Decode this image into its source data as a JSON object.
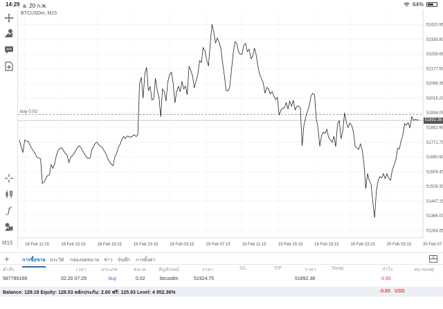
{
  "status": {
    "time": "14:29",
    "date": "อ. 20 ก.พ.",
    "battery": "64%"
  },
  "chart_header": {
    "symbol": "BTCUSDm, M15",
    "buy_label": "buy 0.02",
    "current_price_tag": "51892.38"
  },
  "toolbar": {
    "timeframe": "M15"
  },
  "chart_data": {
    "type": "line",
    "title": "BTCUSDm, M15",
    "ylim": [
      51260,
      52480
    ],
    "y_ticks": [
      "52420.95",
      "52339.80",
      "52258.65",
      "52177.50",
      "52096.35",
      "52015.20",
      "51934.05",
      "51852.90",
      "51771.75",
      "51690.60",
      "51609.45",
      "51528.30",
      "51447.15",
      "51366.00",
      "51284.85"
    ],
    "x_ticks": [
      "18 Feb 11:15",
      "18 Feb 15:15",
      "18 Feb 19:15",
      "18 Feb 23:15",
      "19 Feb 03:15",
      "19 Feb 07:15",
      "19 Feb 11:15",
      "19 Feb 15:15",
      "19 Feb 19:15",
      "19 Feb 23:15",
      "20 Feb 03:15",
      "20 Feb 07:15"
    ],
    "buy_level": 51924.75,
    "current_price": 51892.38,
    "series": [
      {
        "values": [
          51784,
          51746,
          51715,
          51784,
          51778,
          51776,
          51755,
          51738,
          51722,
          51708,
          51688,
          51685,
          51680,
          51545,
          51552,
          51572,
          51588,
          51592,
          51648,
          51628,
          51655,
          51702,
          51728,
          51738,
          51742,
          51725,
          51710,
          51701,
          51660,
          51688,
          51698,
          51710,
          51728,
          51745,
          51752,
          51740,
          51720,
          51705,
          51690,
          51682,
          51685,
          51730,
          51748,
          51767,
          51772,
          51756,
          51750,
          51742,
          51724,
          51708,
          51680,
          51664,
          51650,
          51642,
          51690,
          51710,
          51744,
          51760,
          51788,
          51804,
          51792,
          51806,
          51804,
          51799,
          51806,
          51813,
          51803,
          51812,
          52095,
          52130,
          52014,
          52150,
          52185,
          52056,
          52078,
          52005,
          52010,
          52124,
          52060,
          52020,
          51912,
          52066,
          52052,
          51998,
          52106,
          52145,
          52158,
          52099,
          51989,
          52051,
          52080,
          52051,
          52108,
          52066,
          52082,
          52034,
          52190,
          52168,
          52137,
          52071,
          52111,
          52147,
          52222,
          52212,
          52294,
          52275,
          52226,
          52192,
          52311,
          52422,
          52382,
          52318,
          52347,
          52324,
          52288,
          52210,
          52138,
          52057,
          52055,
          52074,
          52170,
          52261,
          52326,
          52317,
          52271,
          52257,
          52258,
          52306,
          52317,
          52271,
          52285,
          52233,
          52244,
          52292,
          52254,
          52188,
          52145,
          52122,
          52099,
          52042,
          52074,
          52066,
          52038,
          52051,
          52028,
          52006,
          52020,
          51921,
          51948,
          51960,
          51962,
          51990,
          51956,
          51998,
          51970,
          52004,
          51950,
          51971,
          51971,
          51962,
          51752,
          51862,
          51908,
          51942,
          51972,
          52026,
          52042,
          52033,
          51905,
          51847,
          51749,
          51809,
          51828,
          51821,
          51843,
          51797,
          51785,
          51771,
          51805,
          51747,
          51869,
          51892,
          51791,
          51833,
          51934,
          51882,
          51853,
          51878,
          51865,
          51830,
          51749,
          51740,
          51732,
          51762,
          51728,
          51649,
          51515,
          51599,
          51560,
          51540,
          51444,
          51356,
          51502,
          51560,
          51582,
          51575,
          51599,
          51571,
          51598,
          51573,
          51562,
          51617,
          51647,
          51672,
          51739,
          51735,
          51778,
          51813,
          51874,
          51866,
          51880,
          51851,
          51913,
          51892,
          51898,
          51895,
          51892
        ]
      }
    ]
  },
  "tabs": [
    {
      "label": "การซื้อขาย",
      "active": true
    },
    {
      "label": "ประวัติ",
      "active": false
    },
    {
      "label": "กล่องจดหมาย",
      "active": false
    },
    {
      "label": "ข่าว",
      "active": false
    },
    {
      "label": "บันทึก",
      "active": false
    },
    {
      "label": "การตั้งค่า",
      "active": false
    }
  ],
  "table": {
    "headers": [
      "คำสั่ง",
      "เวลา",
      "ประเภท",
      "ขนาด",
      "สัญลักษณ์",
      "ราคา",
      "S/L",
      "T/P",
      "ราคา",
      "Swap",
      "กำไร",
      "หมายเหตุ"
    ],
    "row": {
      "order": "587789169",
      "time": "02.20 07:29",
      "type": "buy",
      "size": "0.02",
      "symbol": "btcusdm",
      "open_price": "51924.75",
      "current_price": "51892.38",
      "profit": "-0.65"
    }
  },
  "balance": {
    "text": "Balance: 129.18 Equity: 128.53 หลักประกัน: 2.60 ฟรี: 125.93 Level: 4 952.36%",
    "profit": "-0.65",
    "currency": "USD"
  },
  "colors": {
    "accent": "#1f6bbd",
    "loss": "#e04545",
    "line": "#222222",
    "grid": "#e6e6e6"
  }
}
